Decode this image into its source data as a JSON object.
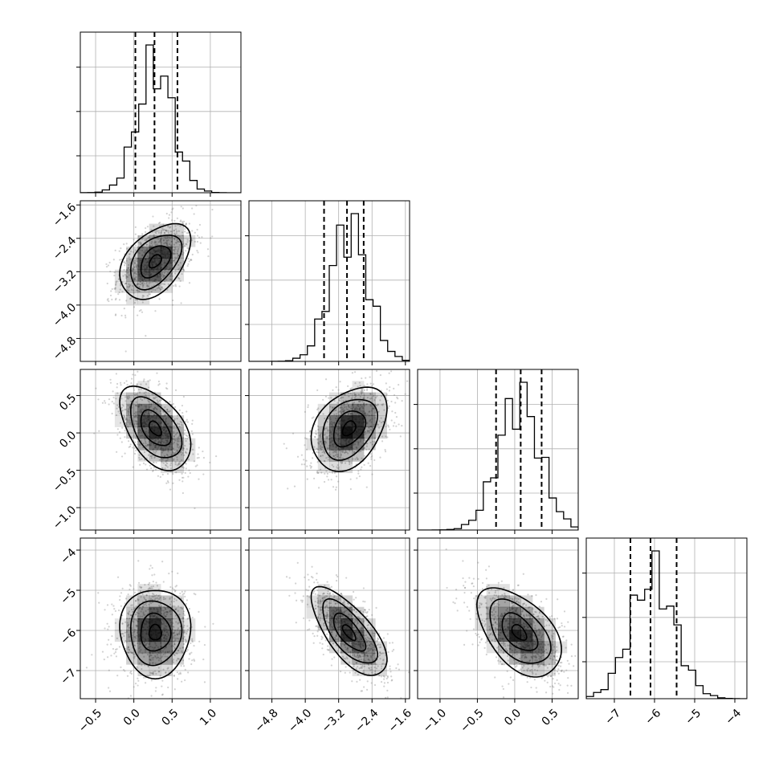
{
  "chart_data": {
    "type": "corner",
    "colors": {
      "line": "#000000",
      "grid": "#b0b0b0",
      "scatter": "#7f7f7f",
      "density": "#000000"
    },
    "grid": true,
    "variables": [
      {
        "index": 0,
        "label": "",
        "range": [
          -0.7,
          1.4
        ],
        "ticks": [
          -0.5,
          0.0,
          0.5,
          1.0
        ],
        "tick_labels": [
          "−0.5",
          "0.0",
          "0.5",
          "1.0"
        ],
        "quantiles": [
          0.02,
          0.27,
          0.57
        ],
        "mean": 0.28,
        "sd": 0.23
      },
      {
        "index": 1,
        "label": "",
        "range": [
          -5.35,
          -1.5
        ],
        "ticks": [
          -4.8,
          -4.0,
          -3.2,
          -2.4,
          -1.6
        ],
        "tick_labels": [
          "−4.8",
          "−4.0",
          "−3.2",
          "−2.4",
          "−1.6"
        ],
        "quantiles": [
          -3.55,
          -3.0,
          -2.6
        ],
        "mean": -2.95,
        "sd": 0.45
      },
      {
        "index": 2,
        "label": "",
        "range": [
          -1.3,
          0.85
        ],
        "ticks": [
          -1.0,
          -0.5,
          0.0,
          0.5
        ],
        "tick_labels": [
          "−1.0",
          "−0.5",
          "0.0",
          "0.5"
        ],
        "quantiles": [
          -0.25,
          0.08,
          0.36
        ],
        "mean": 0.06,
        "sd": 0.28
      },
      {
        "index": 3,
        "label": "",
        "range": [
          -7.7,
          -3.7
        ],
        "ticks": [
          -7,
          -6,
          -5,
          -4
        ],
        "tick_labels": [
          "−7",
          "−6",
          "−5",
          "−4"
        ],
        "quantiles": [
          -6.6,
          -6.1,
          -5.45
        ],
        "mean": -6.05,
        "sd": 0.55
      }
    ],
    "correlations": [
      {
        "pair": [
          1,
          0
        ],
        "r": 0.45
      },
      {
        "pair": [
          2,
          0
        ],
        "r": -0.5
      },
      {
        "pair": [
          2,
          1
        ],
        "r": 0.35
      },
      {
        "pair": [
          3,
          0
        ],
        "r": 0.0
      },
      {
        "pair": [
          3,
          1
        ],
        "r": -0.7
      },
      {
        "pair": [
          3,
          2
        ],
        "r": -0.5
      }
    ]
  }
}
